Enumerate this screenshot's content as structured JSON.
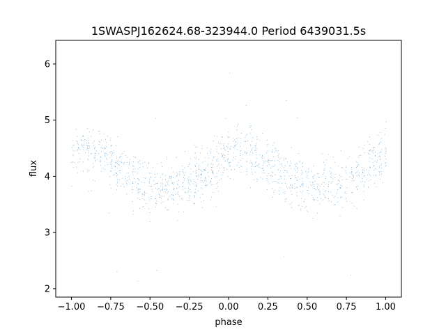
{
  "chart_data": {
    "type": "scatter",
    "title": "1SWASPJ162624.68-323944.0 Period 6439031.5s",
    "xlabel": "phase",
    "ylabel": "flux",
    "xlim": [
      -1.1,
      1.1
    ],
    "ylim": [
      1.85,
      6.42
    ],
    "xticks": [
      -1.0,
      -0.75,
      -0.5,
      -0.25,
      0.0,
      0.25,
      0.5,
      0.75,
      1.0
    ],
    "xtick_labels": [
      "−1.00",
      "−0.75",
      "−0.50",
      "−0.25",
      "0.00",
      "0.25",
      "0.50",
      "0.75",
      "1.00"
    ],
    "yticks": [
      2,
      3,
      4,
      5,
      6
    ],
    "ytick_labels": [
      "2",
      "3",
      "4",
      "5",
      "6"
    ],
    "grid": false,
    "marker_color": "#1f77b4",
    "series": [
      {
        "phase_x": [
          -1.0,
          -0.95,
          -0.9,
          -0.85,
          -0.8,
          -0.75,
          -0.7,
          -0.65,
          -0.6,
          -0.55,
          -0.5,
          -0.45,
          -0.4,
          -0.35,
          -0.3,
          -0.25,
          -0.2,
          -0.15,
          -0.1,
          -0.05,
          0.0,
          0.05,
          0.1,
          0.15,
          0.2,
          0.25,
          0.3,
          0.35,
          0.4,
          0.45,
          0.5,
          0.55,
          0.6,
          0.65,
          0.7,
          0.75,
          0.8,
          0.85,
          0.9,
          0.95,
          1.0
        ],
        "mean_flux": [
          4.45,
          4.5,
          4.45,
          4.45,
          4.45,
          4.3,
          4.15,
          4.1,
          4.0,
          3.8,
          3.8,
          3.8,
          3.8,
          3.8,
          3.85,
          3.95,
          4.0,
          4.05,
          4.15,
          4.3,
          4.4,
          4.5,
          4.45,
          4.4,
          4.35,
          4.2,
          4.1,
          4.0,
          3.9,
          3.85,
          3.85,
          3.85,
          3.85,
          3.85,
          3.9,
          3.95,
          4.0,
          4.1,
          4.2,
          4.3,
          4.4
        ],
        "spread": 0.55
      }
    ]
  }
}
